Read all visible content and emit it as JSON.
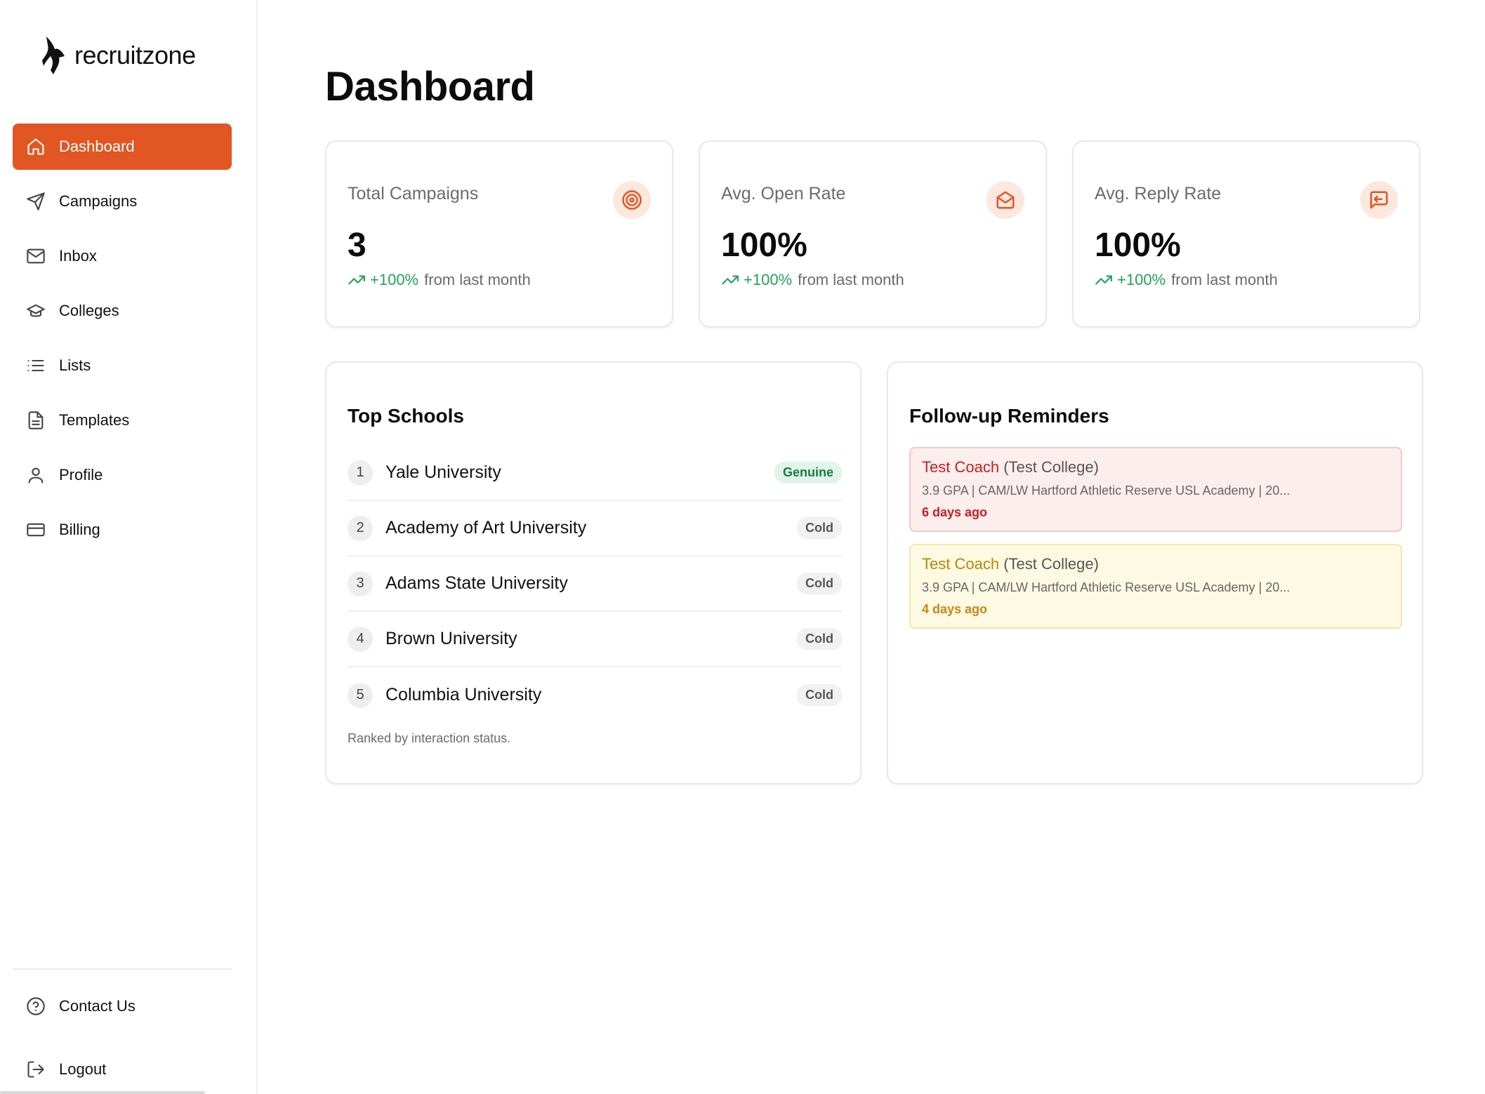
{
  "brand": {
    "name": "recruitzone"
  },
  "sidebar": {
    "items": [
      {
        "label": "Dashboard",
        "icon": "home-icon",
        "active": true
      },
      {
        "label": "Campaigns",
        "icon": "send-icon"
      },
      {
        "label": "Inbox",
        "icon": "mail-icon"
      },
      {
        "label": "Colleges",
        "icon": "graduation-cap-icon"
      },
      {
        "label": "Lists",
        "icon": "list-icon"
      },
      {
        "label": "Templates",
        "icon": "file-text-icon"
      },
      {
        "label": "Profile",
        "icon": "user-icon"
      },
      {
        "label": "Billing",
        "icon": "credit-card-icon"
      }
    ],
    "bottom": [
      {
        "label": "Contact Us",
        "icon": "help-circle-icon"
      },
      {
        "label": "Logout",
        "icon": "logout-icon"
      }
    ]
  },
  "page": {
    "title": "Dashboard"
  },
  "stats": [
    {
      "label": "Total Campaigns",
      "value": "3",
      "trend": "+100%",
      "trend_text": "from last month",
      "icon": "target-icon"
    },
    {
      "label": "Avg. Open Rate",
      "value": "100%",
      "trend": "+100%",
      "trend_text": "from last month",
      "icon": "mail-open-icon"
    },
    {
      "label": "Avg. Reply Rate",
      "value": "100%",
      "trend": "+100%",
      "trend_text": "from last month",
      "icon": "message-reply-icon"
    }
  ],
  "top_schools": {
    "title": "Top Schools",
    "rows": [
      {
        "rank": "1",
        "name": "Yale University",
        "status": "Genuine"
      },
      {
        "rank": "2",
        "name": "Academy of Art University",
        "status": "Cold"
      },
      {
        "rank": "3",
        "name": "Adams State University",
        "status": "Cold"
      },
      {
        "rank": "4",
        "name": "Brown University",
        "status": "Cold"
      },
      {
        "rank": "5",
        "name": "Columbia University",
        "status": "Cold"
      }
    ],
    "footer": "Ranked by interaction status."
  },
  "reminders": {
    "title": "Follow-up Reminders",
    "items": [
      {
        "coach": "Test Coach",
        "college": "(Test College)",
        "details": "3.9 GPA | CAM/LW Hartford Athletic Reserve USL Academy | 20...",
        "time": "6 days ago"
      },
      {
        "coach": "Test Coach",
        "college": "(Test College)",
        "details": "3.9 GPA | CAM/LW Hartford Athletic Reserve USL Academy | 20...",
        "time": "4 days ago"
      }
    ]
  },
  "colors": {
    "accent": "#e15622",
    "positive": "#22a35a",
    "urgent": "#c81e1e",
    "warning": "#c8861a"
  }
}
